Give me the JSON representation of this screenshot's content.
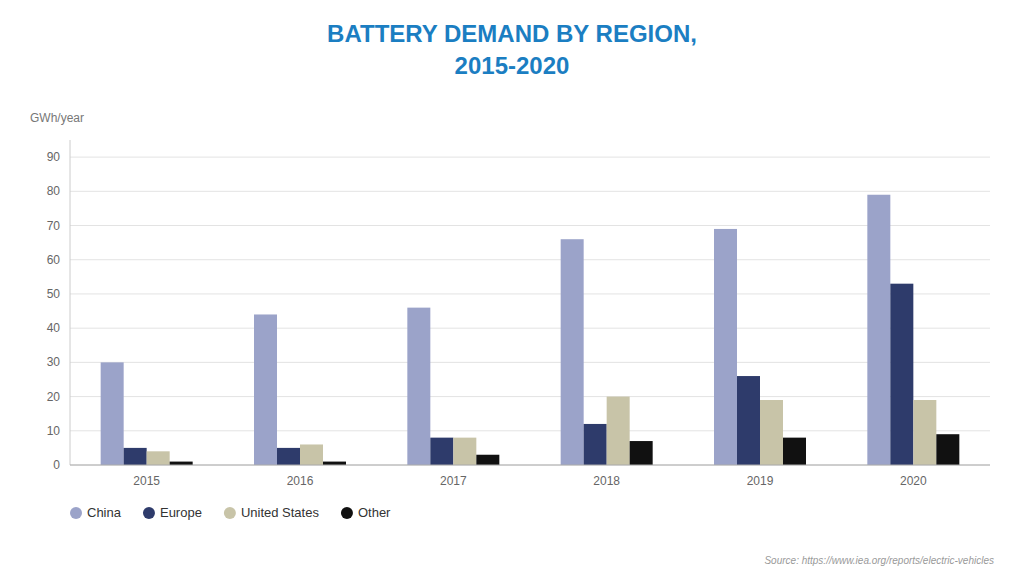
{
  "chart_data": {
    "type": "bar",
    "title": "BATTERY DEMAND BY REGION,\n2015-2020",
    "ylabel": "GWh/year",
    "annotations": [
      "Source: https://www.iea.org/reports/electric-vehicles"
    ],
    "categories": [
      "2015",
      "2016",
      "2017",
      "2018",
      "2019",
      "2020"
    ],
    "series": [
      {
        "name": "China",
        "color": "#9BA3C9",
        "values": [
          30,
          44,
          46,
          66,
          69,
          79
        ]
      },
      {
        "name": "Europe",
        "color": "#2E3B6B",
        "values": [
          5,
          5,
          8,
          12,
          26,
          53
        ]
      },
      {
        "name": "United States",
        "color": "#C8C4A8",
        "values": [
          4,
          6,
          8,
          20,
          19,
          19
        ]
      },
      {
        "name": "Other",
        "color": "#111111",
        "values": [
          1,
          1,
          3,
          7,
          8,
          9
        ]
      }
    ],
    "ylim": [
      0,
      95
    ],
    "yticks": [
      0,
      10,
      20,
      30,
      40,
      50,
      60,
      70,
      80,
      90
    ],
    "grid": true,
    "legend": "bottom"
  }
}
